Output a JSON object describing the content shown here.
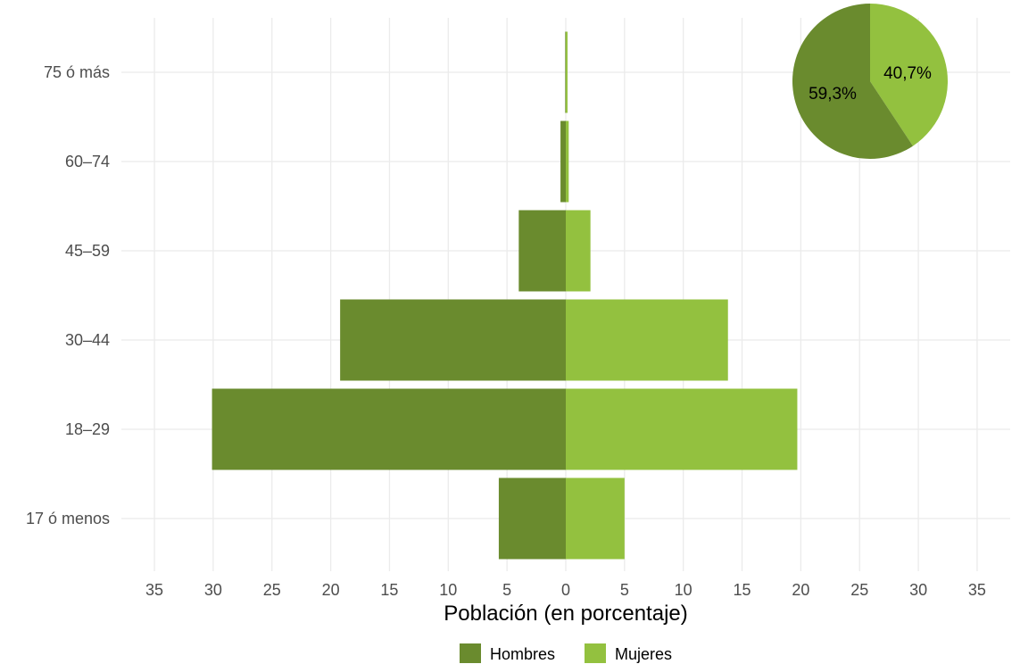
{
  "chart_data": [
    {
      "type": "bar",
      "orientation": "horizontal",
      "layout": "population-pyramid",
      "categories": [
        "17 ó menos",
        "18–29",
        "30–44",
        "45–59",
        "60–74",
        "75 ó más"
      ],
      "series": [
        {
          "name": "Hombres",
          "values": [
            5.7,
            30.1,
            19.2,
            4.0,
            0.45,
            0.05
          ],
          "color": "#6a8b2e",
          "side": "left"
        },
        {
          "name": "Mujeres",
          "values": [
            5.0,
            19.7,
            13.8,
            2.1,
            0.25,
            0.15
          ],
          "color": "#93c13f",
          "side": "right"
        }
      ],
      "xlabel": "Población (en porcentaje)",
      "xticks": [
        35,
        30,
        25,
        20,
        15,
        10,
        5,
        0,
        5,
        10,
        15,
        20,
        25,
        30,
        35
      ],
      "xlim": [
        -35,
        35
      ],
      "grid": true,
      "legend": {
        "position": "bottom",
        "entries": [
          "Hombres",
          "Mujeres"
        ]
      }
    },
    {
      "type": "pie",
      "position": "top-right inset",
      "slices": [
        {
          "name": "Hombres",
          "value": 59.3,
          "label": "59,3%",
          "color": "#6a8b2e"
        },
        {
          "name": "Mujeres",
          "value": 40.7,
          "label": "40,7%",
          "color": "#93c13f"
        }
      ]
    }
  ]
}
